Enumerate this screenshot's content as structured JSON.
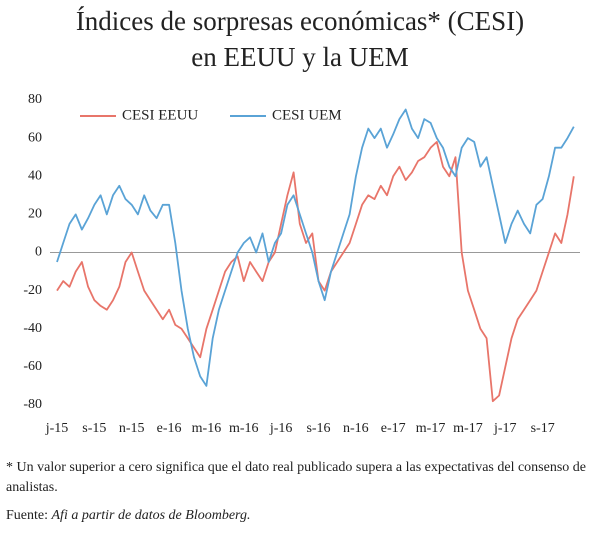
{
  "chart_data": {
    "type": "line",
    "title": [
      "Índices de sorpresas económicas* (CESI)",
      "en EEUU y la UEM"
    ],
    "xlim": [
      0,
      84
    ],
    "xticks": [
      {
        "value": 0,
        "label": "j-15"
      },
      {
        "value": 6,
        "label": "s-15"
      },
      {
        "value": 12,
        "label": "n-15"
      },
      {
        "value": 18,
        "label": "e-16"
      },
      {
        "value": 24,
        "label": "m-16"
      },
      {
        "value": 30,
        "label": "m-16"
      },
      {
        "value": 36,
        "label": "j-16"
      },
      {
        "value": 42,
        "label": "s-16"
      },
      {
        "value": 48,
        "label": "n-16"
      },
      {
        "value": 54,
        "label": "e-17"
      },
      {
        "value": 60,
        "label": "m-17"
      },
      {
        "value": 66,
        "label": "m-17"
      },
      {
        "value": 72,
        "label": "j-17"
      },
      {
        "value": 78,
        "label": "s-17"
      }
    ],
    "ylim": [
      -80,
      80
    ],
    "yticks": [
      -80,
      -60,
      -40,
      -20,
      0,
      20,
      40,
      60,
      80
    ],
    "legend": "upper left",
    "series": [
      {
        "name": "CESI EEUU",
        "color": "#e8756a",
        "values": [
          -20,
          -15,
          -18,
          -10,
          -5,
          -18,
          -25,
          -28,
          -30,
          -25,
          -18,
          -5,
          0,
          -10,
          -20,
          -25,
          -30,
          -35,
          -30,
          -38,
          -40,
          -45,
          -50,
          -55,
          -40,
          -30,
          -20,
          -10,
          -5,
          -2,
          -15,
          -5,
          -10,
          -15,
          -5,
          0,
          15,
          30,
          42,
          15,
          5,
          10,
          -15,
          -20,
          -10,
          -5,
          0,
          5,
          15,
          25,
          30,
          28,
          35,
          30,
          40,
          45,
          38,
          42,
          48,
          50,
          55,
          58,
          45,
          40,
          50,
          0,
          -20,
          -30,
          -40,
          -45,
          -78,
          -75,
          -60,
          -45,
          -35,
          -30,
          -25,
          -20,
          -10,
          0,
          10,
          5,
          20,
          40
        ]
      },
      {
        "name": "CESI UEM",
        "color": "#5aa3d6",
        "values": [
          -5,
          5,
          15,
          20,
          12,
          18,
          25,
          30,
          20,
          30,
          35,
          28,
          25,
          20,
          30,
          22,
          18,
          25,
          25,
          5,
          -20,
          -40,
          -55,
          -65,
          -70,
          -45,
          -30,
          -20,
          -10,
          0,
          5,
          8,
          0,
          10,
          -5,
          5,
          10,
          25,
          30,
          20,
          10,
          0,
          -15,
          -25,
          -10,
          0,
          10,
          20,
          40,
          55,
          65,
          60,
          65,
          55,
          62,
          70,
          75,
          65,
          60,
          70,
          68,
          60,
          55,
          45,
          40,
          55,
          60,
          58,
          45,
          50,
          35,
          20,
          5,
          15,
          22,
          15,
          10,
          25,
          28,
          40,
          55,
          55,
          60,
          66
        ]
      }
    ],
    "footnote": "* Un valor superior a cero significa que el dato real publicado supera a las expectativas del consenso de analistas.",
    "source_label": "Fuente:",
    "source_text": "Afi a partir de datos de Bloomberg."
  }
}
